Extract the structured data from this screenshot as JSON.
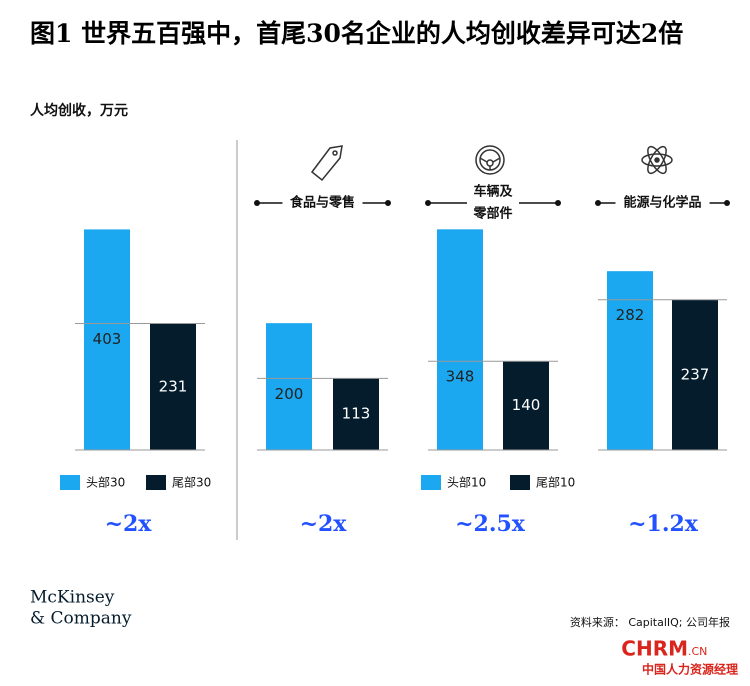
{
  "title": "图1 世界五百强中，首尾30名企业的人均创收差异可达2倍",
  "subtitle": "人均创收，万元",
  "chart_data": [
    {
      "type": "bar",
      "ylim": [
        0,
        475
      ],
      "annotation": "~2x",
      "series": [
        {
          "name": "头部30",
          "color": "#1ba8f0",
          "values": [
            403
          ]
        },
        {
          "name": "尾部30",
          "color": "#051c2c",
          "values": [
            231
          ]
        }
      ]
    },
    {
      "type": "bar",
      "title": [
        "食品与零售"
      ],
      "ylim": [
        0,
        410
      ],
      "annotation": "~2x",
      "series": [
        {
          "color": "#1ba8f0",
          "values": [
            200
          ]
        },
        {
          "color": "#051c2c",
          "values": [
            113
          ]
        }
      ]
    },
    {
      "type": "bar",
      "title": [
        "车辆及",
        "零部件"
      ],
      "ylim": [
        0,
        410
      ],
      "annotation": "~2.5x",
      "series": [
        {
          "name": "头部10",
          "color": "#1ba8f0",
          "values": [
            348
          ]
        },
        {
          "name": "尾部10",
          "color": "#051c2c",
          "values": [
            140
          ]
        }
      ]
    },
    {
      "type": "bar",
      "title": [
        "能源与化学品"
      ],
      "ylim": [
        0,
        410
      ],
      "annotation": "~1.2x",
      "series": [
        {
          "color": "#1ba8f0",
          "values": [
            282
          ]
        },
        {
          "color": "#051c2c",
          "values": [
            237
          ]
        }
      ]
    }
  ],
  "logo": [
    "McKinsey",
    "& Company"
  ],
  "source": "资料来源： CapitalIQ; 公司年报",
  "watermark": [
    "CHRM",
    ".CN",
    "中国人力资源经理"
  ]
}
